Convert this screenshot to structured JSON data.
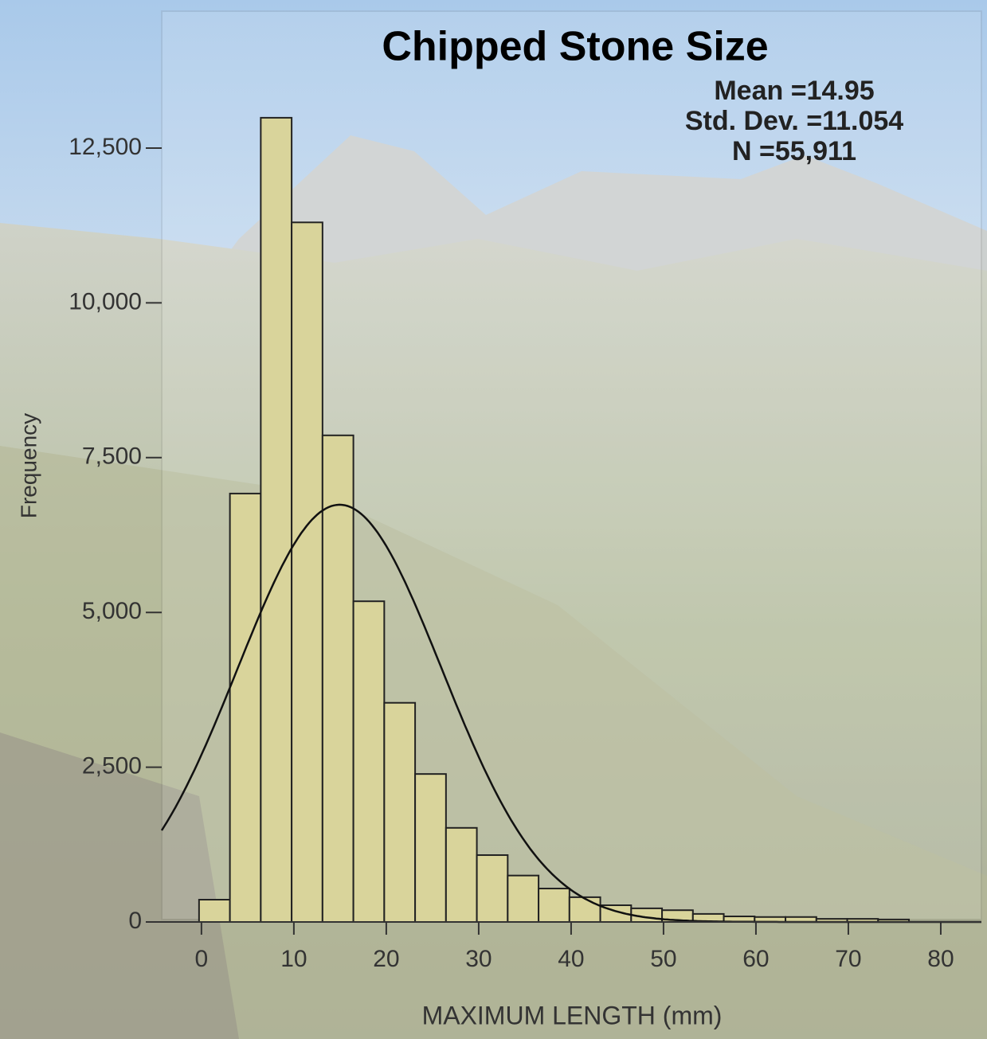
{
  "chart_data": {
    "type": "histogram",
    "title": "Chipped Stone Size",
    "x_label": "MAXIMUM LENGTH (mm)",
    "y_label": "Frequency",
    "stats": [
      {
        "value": 14.95,
        "label": "Mean =14.95"
      },
      {
        "value": 11.054,
        "label": "Std. Dev. =11.054"
      },
      {
        "value": 55911,
        "label": "N =55,911"
      }
    ],
    "normal_curve": true,
    "color": "#d9d49b",
    "bins": [
      -0.26,
      3.08,
      6.42,
      9.76,
      13.1,
      16.44,
      19.78,
      23.12,
      26.46,
      29.8,
      33.14,
      36.48,
      39.82,
      43.16,
      46.5,
      49.84,
      53.18,
      56.52,
      59.86,
      63.2,
      66.54,
      69.88,
      73.22,
      76.56
    ],
    "counts": [
      360,
      6920,
      12990,
      11300,
      7860,
      5180,
      3540,
      2390,
      1520,
      1080,
      750,
      540,
      400,
      270,
      220,
      190,
      130,
      90,
      80,
      80,
      50,
      50,
      40
    ],
    "xlim": [
      -4.3,
      84.4
    ],
    "ylim": [
      0,
      14712
    ],
    "xticks": [
      0,
      10,
      20,
      30,
      40,
      50,
      60,
      70,
      80
    ],
    "yticks": [
      0,
      {
        "value": 2500,
        "label": "2,500"
      },
      {
        "value": 5000,
        "label": "5,000"
      },
      {
        "value": 7500,
        "label": "7,500"
      },
      {
        "value": 10000,
        "label": "10,000"
      },
      {
        "value": 12500,
        "label": "12,500"
      }
    ]
  }
}
